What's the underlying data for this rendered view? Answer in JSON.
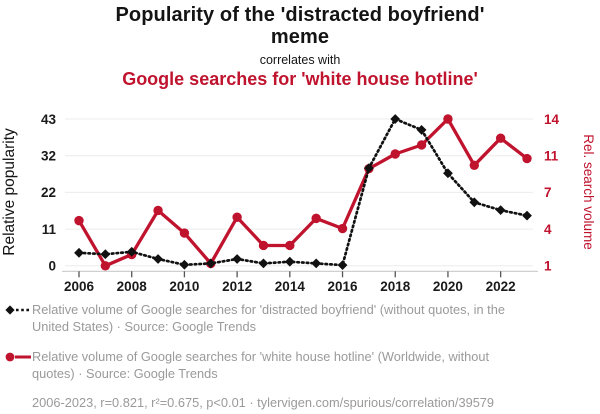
{
  "header": {
    "title": "Popularity of the 'distracted boyfriend' meme",
    "connector": "correlates with",
    "subtitle": "Google searches for 'white house hotline'"
  },
  "chart_data": {
    "type": "line",
    "x": [
      2006,
      2007,
      2008,
      2009,
      2010,
      2011,
      2012,
      2013,
      2014,
      2015,
      2016,
      2017,
      2018,
      2019,
      2020,
      2021,
      2022,
      2023
    ],
    "x_tick_labels": [
      "2006",
      "2008",
      "2010",
      "2012",
      "2014",
      "2016",
      "2018",
      "2020",
      "2022"
    ],
    "series": [
      {
        "name": "Relative volume of Google searches for 'white house hotline'",
        "axis": "right",
        "style": "solid",
        "marker": "circle",
        "color": "#c0132e",
        "values": [
          5.0,
          1.0,
          2.0,
          5.9,
          3.9,
          1.2,
          5.3,
          2.8,
          2.8,
          5.2,
          4.3,
          9.6,
          10.9,
          11.7,
          14.0,
          9.9,
          12.3,
          10.5
        ]
      },
      {
        "name": "Relative volume of Google searches for 'distracted boyfriend'",
        "axis": "left",
        "style": "dotted",
        "marker": "diamond",
        "color": "#111111",
        "values": [
          3.8,
          3.4,
          4.1,
          2.0,
          0.3,
          0.7,
          2.0,
          0.7,
          1.2,
          0.7,
          0.2,
          28.6,
          43.0,
          39.8,
          27.1,
          18.6,
          16.3,
          14.7
        ]
      }
    ],
    "left_axis": {
      "label": "Relative popularity",
      "min": 0,
      "max": 43,
      "tick_labels": [
        "0",
        "11",
        "22",
        "32",
        "43"
      ]
    },
    "right_axis": {
      "label": "Rel. search volume",
      "min": 1,
      "max": 14,
      "tick_labels": [
        "1",
        "4",
        "7",
        "11",
        "14"
      ]
    },
    "grid": "horizontal"
  },
  "legend": {
    "items": [
      {
        "marker": "black-diamond-dotted",
        "text": "Relative volume of Google searches for 'distracted boyfriend' (without quotes, in the United States) · Source: Google Trends"
      },
      {
        "marker": "red-circle-solid",
        "text": "Relative volume of Google searches for 'white house hotline' (Worldwide, without quotes) · Source: Google Trends"
      }
    ],
    "stats": "2006-2023, r=0.821, r²=0.675, p<0.01 · tylervigen.com/spurious/correlation/39579"
  },
  "colors": {
    "accent_red": "#c0132e",
    "series_black": "#111111",
    "legend_grey": "#9a9a9a",
    "grid_line": "#ececec",
    "axis_line": "#c9c9c9",
    "tick_text": "#1a1a1a"
  }
}
